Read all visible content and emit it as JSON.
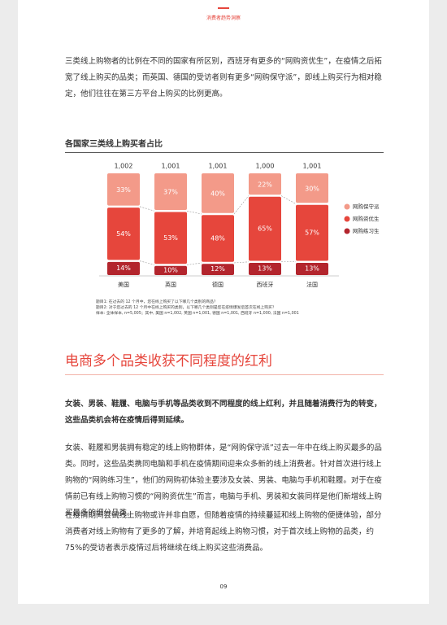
{
  "header": {
    "title": "消费者趋势洞察"
  },
  "intro": "三类线上购物者的比例在不同的国家有所区别，西班牙有更多的“网购资优生”，在疫情之后拓宽了线上购买的品类；而英国、德国的受访者则有更多“网购保守派”，即线上购买行为相对稳定，他们往往在第三方平台上购买的比例更高。",
  "chart_data": {
    "type": "stacked-bar",
    "title": "各国家三类线上购买者占比",
    "categories": [
      "美国",
      "英国",
      "德国",
      "西班牙",
      "法国"
    ],
    "series": [
      {
        "name": "网购练习生",
        "color": "#b3252d",
        "values": [
          14,
          10,
          12,
          13,
          13
        ],
        "value_labels": [
          "14%",
          "10%",
          "12%",
          "13%",
          "13%"
        ]
      },
      {
        "name": "网购资优生",
        "color": "#e6463c",
        "values": [
          54,
          53,
          48,
          65,
          57
        ],
        "value_labels": [
          "54%",
          "53%",
          "48%",
          "65%",
          "57%"
        ]
      },
      {
        "name": "网购保守派",
        "color": "#f39a89",
        "values": [
          33,
          37,
          40,
          22,
          30
        ],
        "value_labels": [
          "33%",
          "37%",
          "40%",
          "22%",
          "30%"
        ]
      }
    ],
    "sample_sizes": {
      "values": [
        1002,
        1001,
        1001,
        1000,
        1001
      ],
      "value_labels": [
        "1,002",
        "1,001",
        "1,001",
        "1,000",
        "1,001"
      ]
    },
    "legend": "right"
  },
  "notes": [
    "题目1: 在过去的 12 个月中，您在线上购买了以下哪几个类别的商品？",
    "题目2: 对于您过去的 12 个月中在线上购买的类别，以下哪几个类别是您在疫情爆发后首次在线上购买？",
    "样本: 全体样本, n=5,005；其中, 美国 n=1,002, 英国 n=1,001, 德国 n=1,001, 西班牙 n=1,000, 法国 n=1,001"
  ],
  "section": {
    "heading": "电商多个品类收获不同程度的红利",
    "paragraphs": [
      "女装、男装、鞋履、电脑与手机等品类收到不同程度的线上红利，并且随着消费行为的转变，这些品类机会将在疫情后得到延续。",
      "女装、鞋履和男装拥有稳定的线上购物群体，是“网购保守派”过去一年中在线上购买最多的品类。同时，这些品类携同电脑和手机在疫情期间迎来众多新的线上消费者。针对首次进行线上购物的“网购练习生”，他们的网购初体验主要涉及女装、男装、电脑与手机和鞋履。对于在疫情前已有线上购物习惯的“网购资优生”而言，电脑与手机、男装和女装同样是他们新增线上购买最多的细分品类。",
      "在疫情期间尝试线上购物或许并非自愿，但随着疫情的持续蔓延和线上购物的便捷体验，部分消费者对线上购物有了更多的了解，并培育起线上购物习惯，对于首次线上购物的品类，约75%的受访者表示疫情过后将继续在线上购买这些消费品。"
    ]
  },
  "page_number": "09"
}
